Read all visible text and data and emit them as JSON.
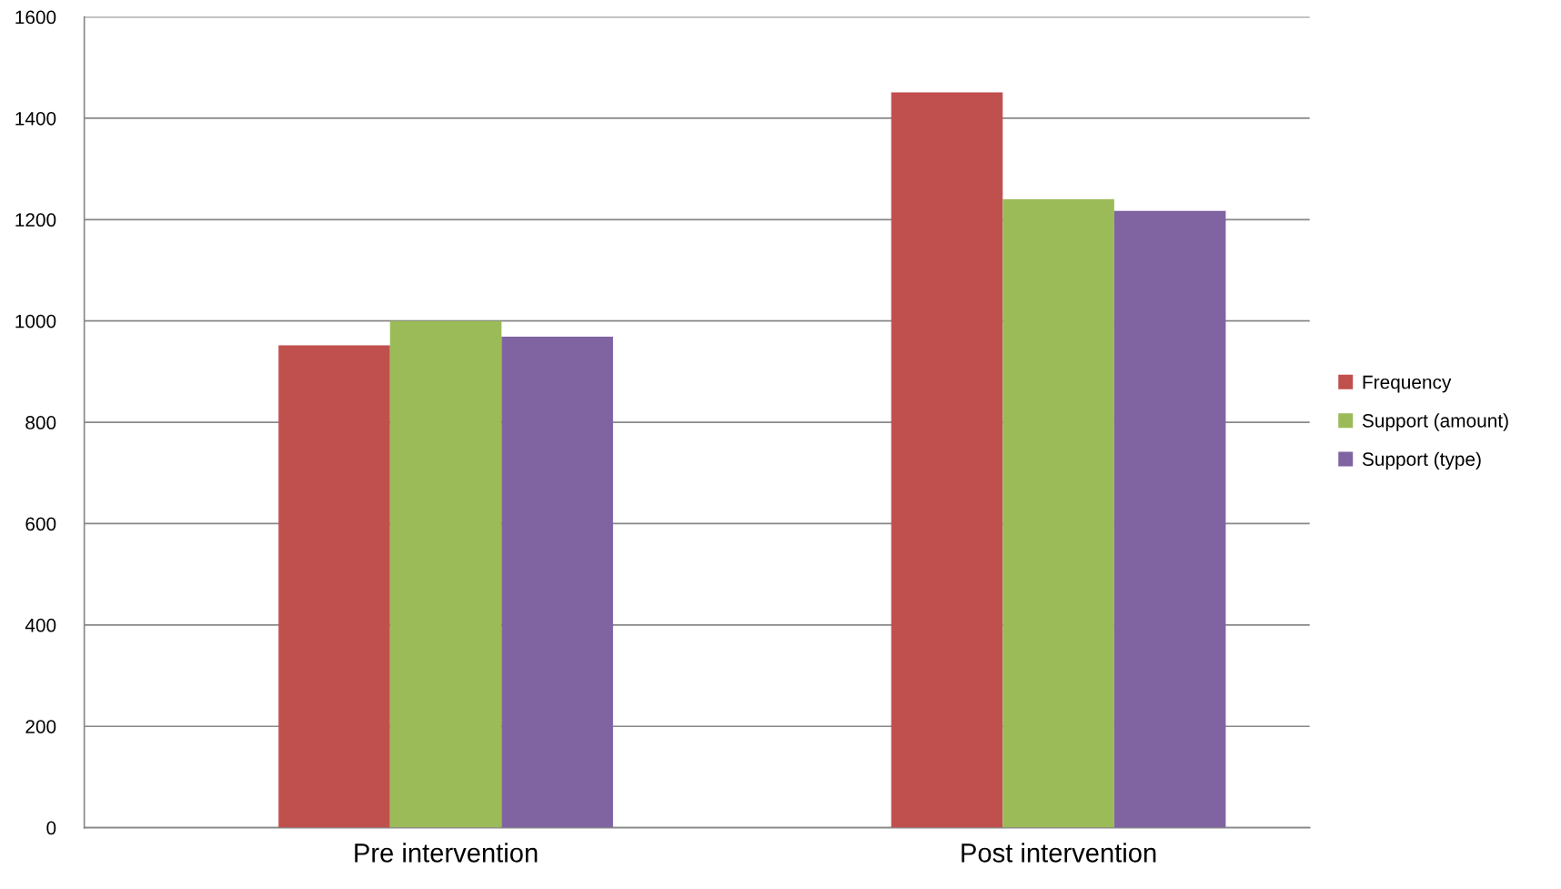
{
  "chart_data": {
    "type": "bar",
    "categories": [
      "Pre intervention",
      "Post intervention"
    ],
    "series": [
      {
        "name": "Frequency",
        "color": "#c0504d",
        "values": [
          952,
          1451
        ]
      },
      {
        "name": "Support (amount)",
        "color": "#9bbb59",
        "values": [
          1000,
          1240
        ]
      },
      {
        "name": "Support (type)",
        "color": "#8064a2",
        "values": [
          969,
          1217
        ]
      }
    ],
    "ylim": [
      0,
      1600
    ],
    "yticks": [
      0,
      200,
      400,
      600,
      800,
      1000,
      1200,
      1400,
      1600
    ],
    "grid": "y",
    "legend": "right"
  }
}
